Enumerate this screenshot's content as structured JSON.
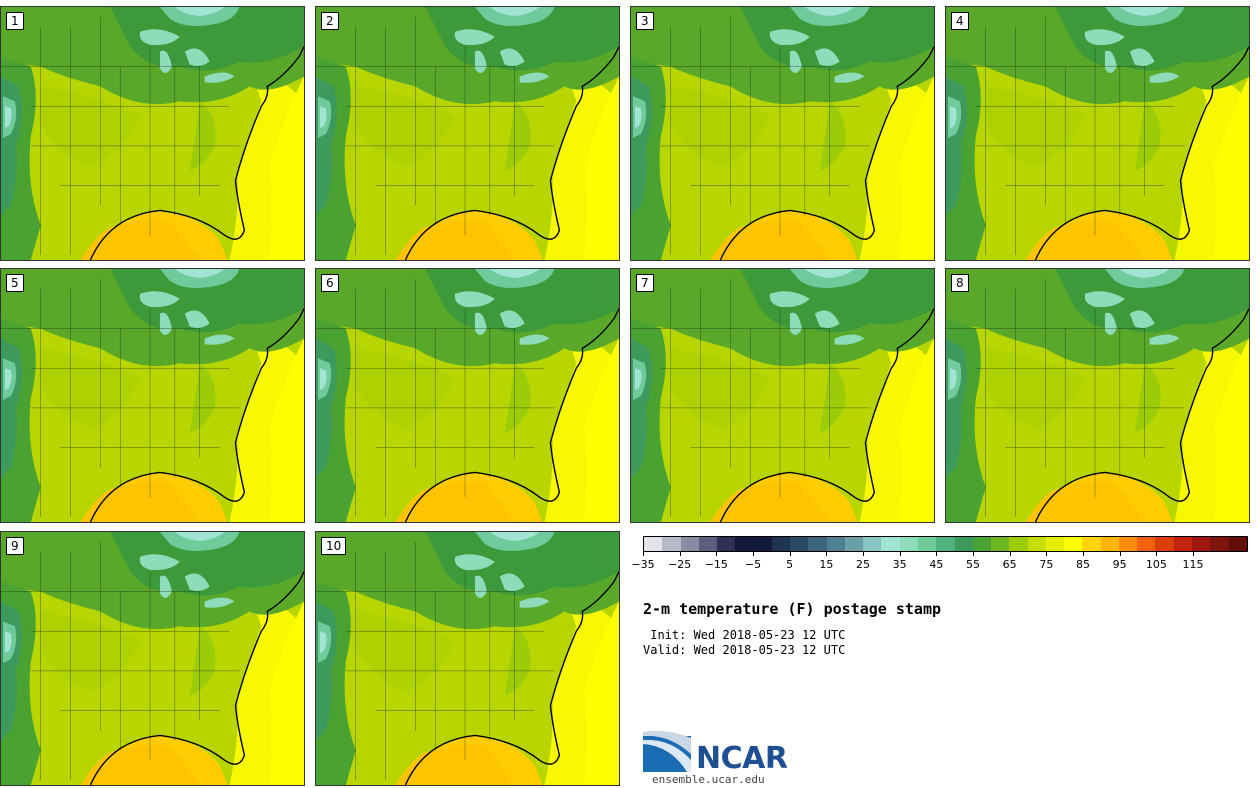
{
  "panels": [
    {
      "label": "1"
    },
    {
      "label": "2"
    },
    {
      "label": "3"
    },
    {
      "label": "4"
    },
    {
      "label": "5"
    },
    {
      "label": "6"
    },
    {
      "label": "7"
    },
    {
      "label": "8"
    },
    {
      "label": "9"
    },
    {
      "label": "10"
    }
  ],
  "colorbar": {
    "colors": [
      "#e2e4ea",
      "#b7b9c8",
      "#8a8ca4",
      "#5c5f7e",
      "#2f3255",
      "#12173b",
      "#121b3a",
      "#1f3352",
      "#2d4a66",
      "#3d647c",
      "#4f8092",
      "#6a9fa8",
      "#88c4c0",
      "#a1e4d4",
      "#8fdcbb",
      "#6fca9c",
      "#51b27e",
      "#3d9a5c",
      "#4aa232",
      "#70b61e",
      "#9ccc08",
      "#c4de04",
      "#e6ee02",
      "#fefe00",
      "#ffd410",
      "#ffb408",
      "#fd8c0a",
      "#f4620c",
      "#dc3e0c",
      "#c0240c",
      "#a0180c",
      "#80140e",
      "#601008"
    ],
    "ticks": [
      "−35",
      "−25",
      "−15",
      "−5",
      "5",
      "15",
      "25",
      "35",
      "45",
      "55",
      "65",
      "75",
      "85",
      "95",
      "105",
      "115"
    ]
  },
  "title": "2-m temperature (F) postage stamp",
  "init_line": " Init: Wed 2018-05-23 12 UTC",
  "valid_line": "Valid: Wed 2018-05-23 12 UTC",
  "logo": {
    "text": "NCAR",
    "url": "ensemble.ucar.edu"
  }
}
